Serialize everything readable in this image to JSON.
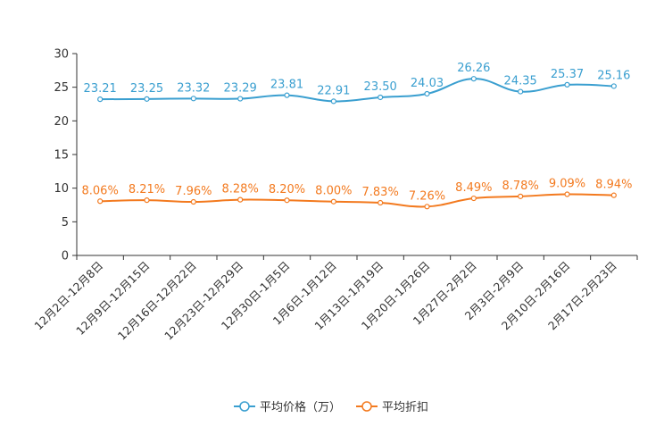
{
  "chart_data": {
    "type": "line",
    "categories": [
      "12月2日-12月8日",
      "12月9日-12月15日",
      "12月16日-12月22日",
      "12月23日-12月29日",
      "12月30日-1月5日",
      "1月6日-1月12日",
      "1月13日-1月19日",
      "1月20日-1月26日",
      "1月27日-2月2日",
      "2月3日-2月9日",
      "2月10日-2月16日",
      "2月17日-2月23日"
    ],
    "ylim": [
      0,
      30
    ],
    "yticks": [
      0,
      5,
      10,
      15,
      20,
      25,
      30
    ],
    "series": [
      {
        "name": "平均价格（万）",
        "color": "#3a9fd0",
        "values": [
          23.21,
          23.25,
          23.32,
          23.29,
          23.81,
          22.91,
          23.5,
          24.03,
          26.26,
          24.35,
          25.37,
          25.16
        ],
        "labels": [
          "23.21",
          "23.25",
          "23.32",
          "23.29",
          "23.81",
          "22.91",
          "23.50",
          "24.03",
          "26.26",
          "24.35",
          "25.37",
          "25.16"
        ]
      },
      {
        "name": "平均折扣",
        "color": "#f37a1f",
        "values": [
          8.06,
          8.21,
          7.96,
          8.28,
          8.2,
          8.0,
          7.83,
          7.26,
          8.49,
          8.78,
          9.09,
          8.94
        ],
        "labels": [
          "8.06%",
          "8.21%",
          "7.96%",
          "8.28%",
          "8.20%",
          "8.00%",
          "7.83%",
          "7.26%",
          "8.49%",
          "8.78%",
          "9.09%",
          "8.94%"
        ]
      }
    ]
  }
}
